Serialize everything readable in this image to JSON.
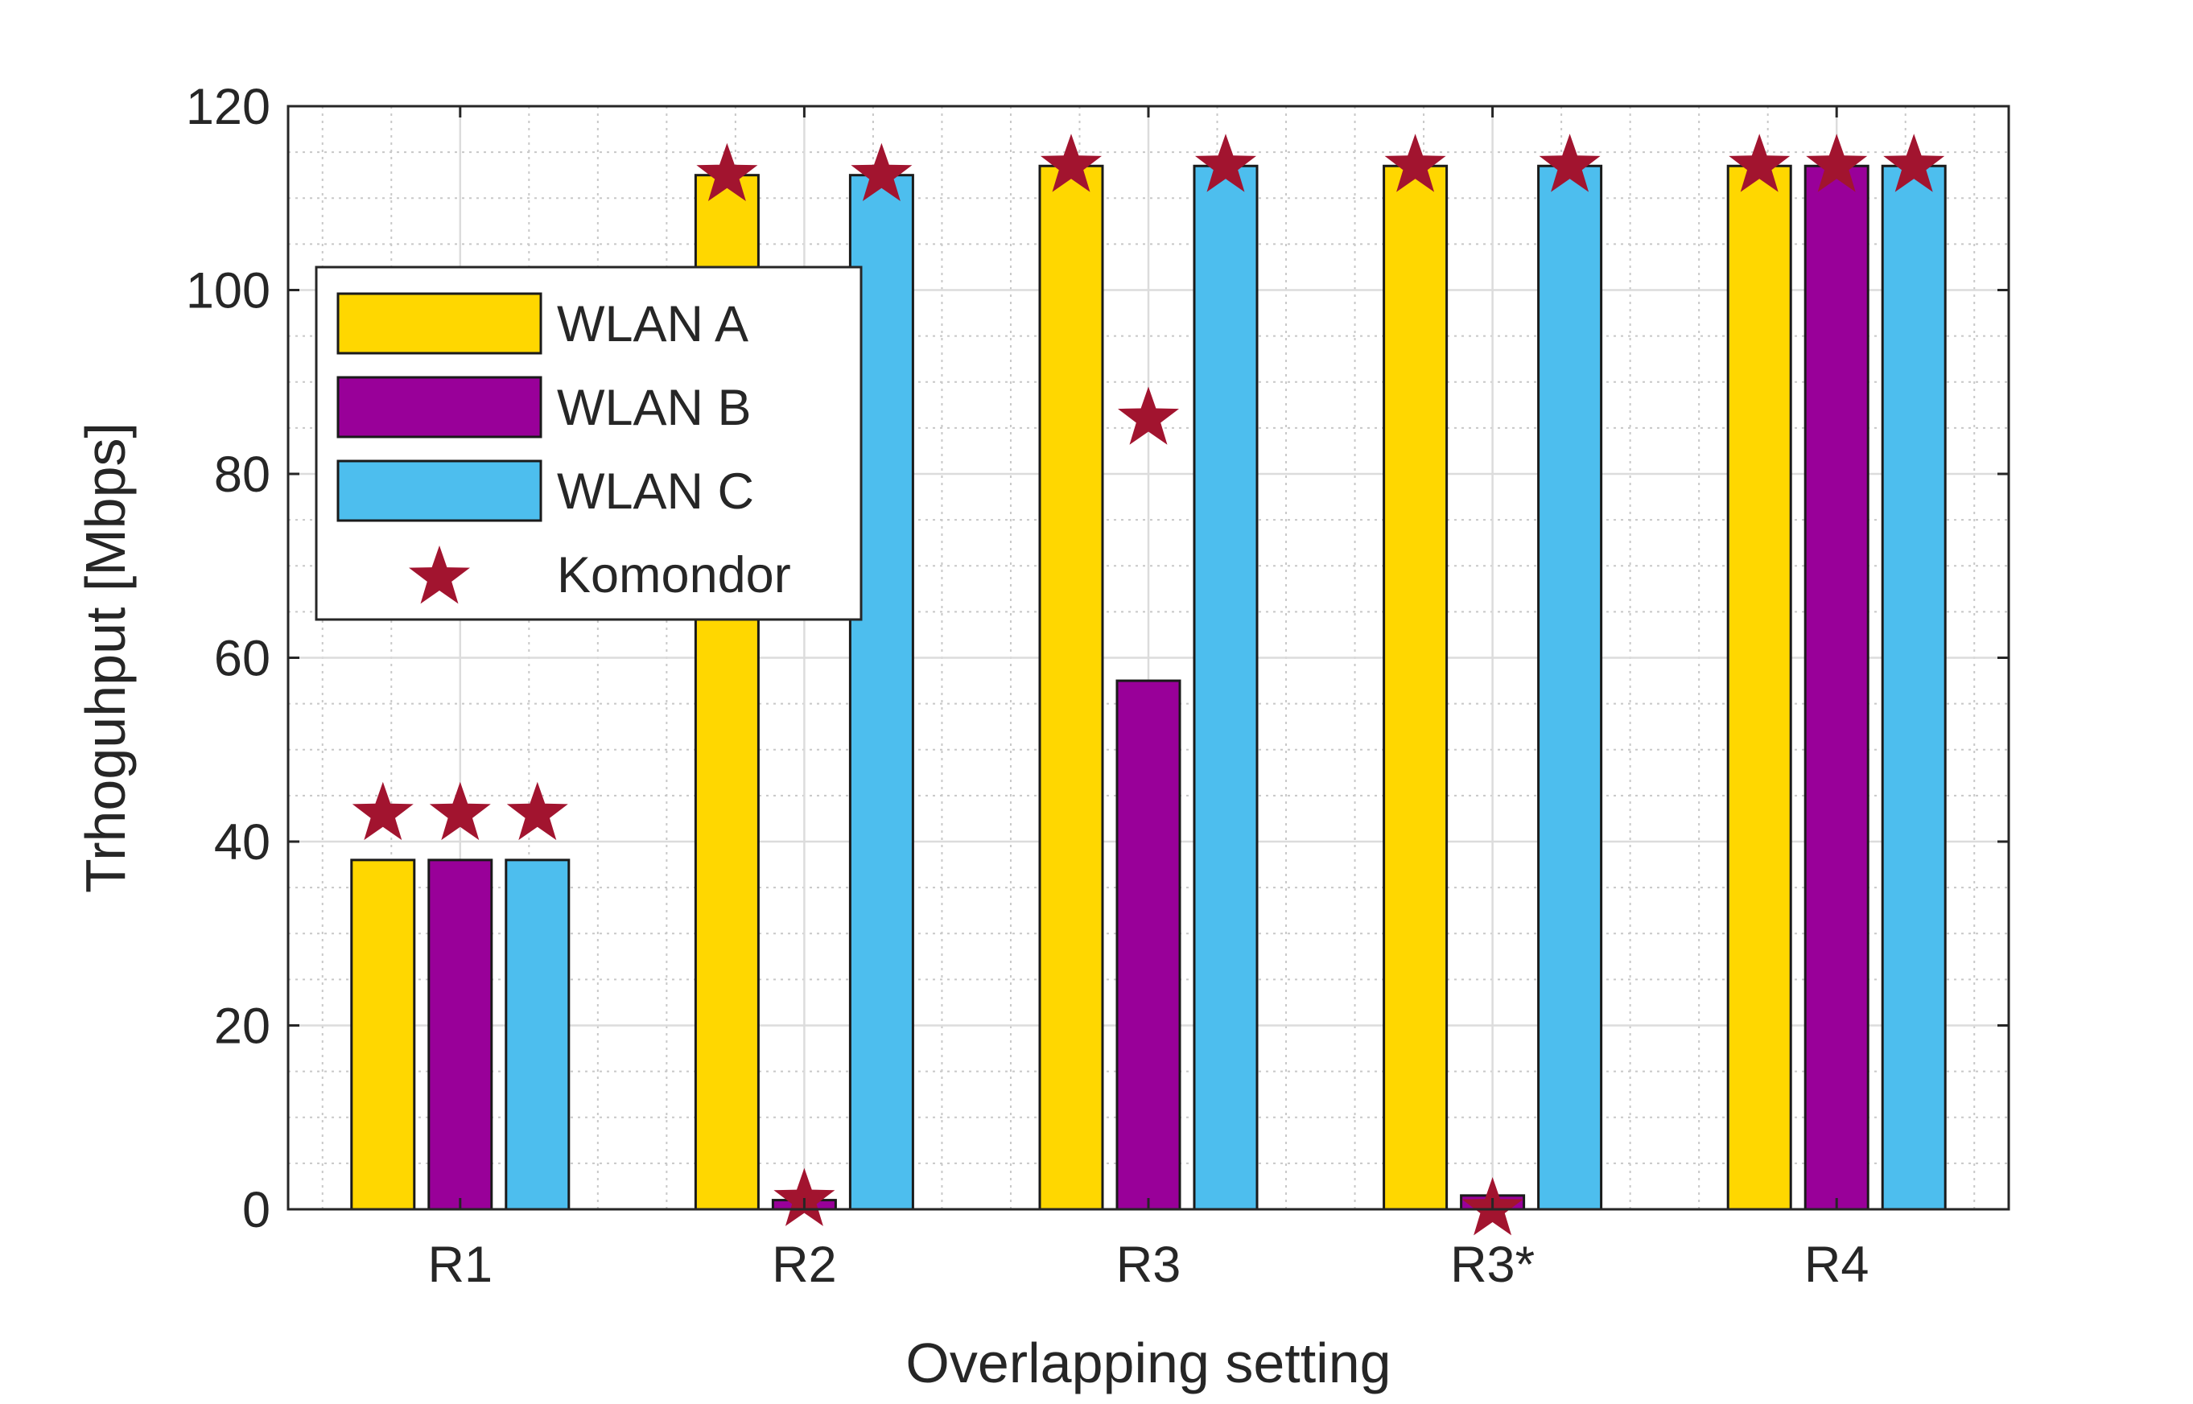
{
  "chart_data": {
    "type": "bar",
    "title": "",
    "xlabel": "Overlapping setting",
    "ylabel": "Trhoguhput [Mbps]",
    "categories": [
      "R1",
      "R2",
      "R3",
      "R3*",
      "R4"
    ],
    "ylim": [
      0,
      120
    ],
    "yticks": [
      0,
      20,
      40,
      60,
      80,
      100,
      120
    ],
    "yticks_labels": [
      "0",
      "20",
      "40",
      "60",
      "80",
      "100",
      "120"
    ],
    "grid": true,
    "minor_grid": true,
    "legend_position": "upper-left",
    "series": [
      {
        "name": "WLAN A",
        "kind": "bar",
        "color": "#FFD700",
        "values": [
          38,
          112.5,
          113.5,
          113.5,
          113.5
        ]
      },
      {
        "name": "WLAN B",
        "kind": "bar",
        "color": "#990099",
        "values": [
          38,
          1,
          57.5,
          1.5,
          113.5
        ]
      },
      {
        "name": "WLAN C",
        "kind": "bar",
        "color": "#4DBEEE",
        "values": [
          38,
          112.5,
          113.5,
          113.5,
          113.5
        ]
      }
    ],
    "markers": {
      "name": "Komondor",
      "symbol": "star",
      "color": "#A2142F",
      "values": [
        [
          43,
          43,
          43
        ],
        [
          112.5,
          1,
          112.5
        ],
        [
          113.5,
          86,
          113.5
        ],
        [
          113.5,
          0,
          113.5
        ],
        [
          113.5,
          113.5,
          113.5
        ]
      ]
    }
  }
}
